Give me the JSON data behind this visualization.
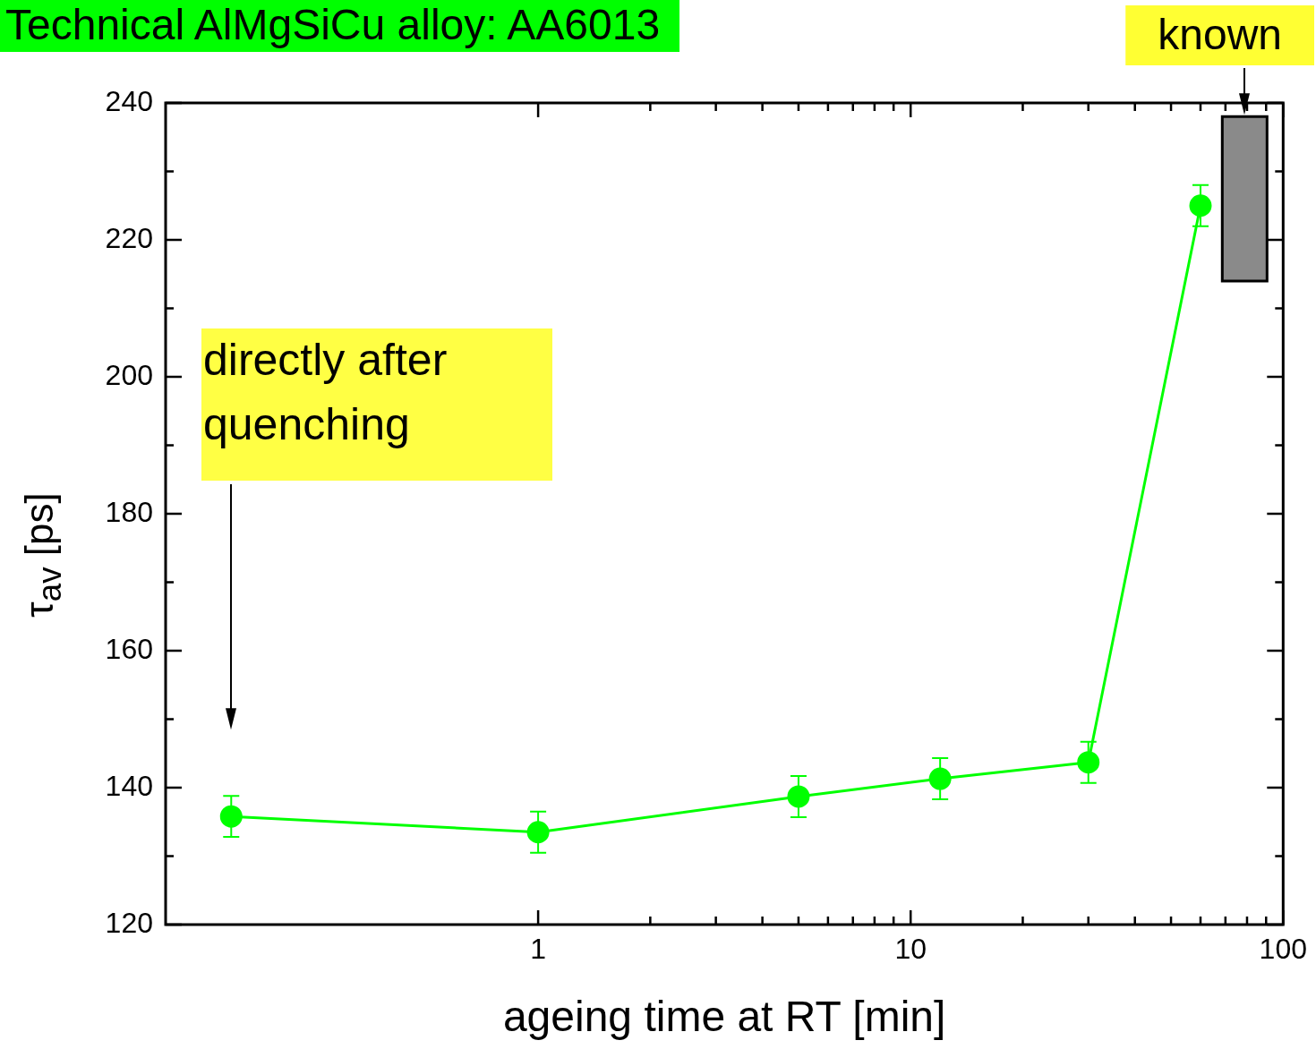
{
  "chart_data": {
    "type": "line",
    "title": "Technical AlMgSiCu alloy: AA6013",
    "xlabel": "ageing time at RT [min]",
    "ylabel": "τ$_{av}$ [ps]",
    "x": [
      0.15,
      1,
      5,
      12,
      30,
      60
    ],
    "series": [
      {
        "color": "#00ff00",
        "values": [
          135.8,
          133.5,
          138.7,
          141.3,
          143.7,
          225
        ],
        "errors": [
          3,
          3,
          3,
          3,
          3,
          3
        ]
      }
    ],
    "log": "x",
    "xlim": [
      0.1,
      100
    ],
    "xticks": [
      1,
      {
        "value": 2,
        "label": null
      },
      {
        "value": 3,
        "label": null
      },
      {
        "value": 4,
        "label": null
      },
      {
        "value": 5,
        "label": null
      },
      {
        "value": 6,
        "label": null
      },
      {
        "value": 7,
        "label": null
      },
      {
        "value": 8,
        "label": null
      },
      {
        "value": 9,
        "label": null
      },
      10,
      {
        "value": 20,
        "label": null
      },
      {
        "value": 30,
        "label": null
      },
      {
        "value": 40,
        "label": null
      },
      {
        "value": 50,
        "label": null
      },
      {
        "value": 60,
        "label": null
      },
      {
        "value": 70,
        "label": null
      },
      {
        "value": 80,
        "label": null
      },
      {
        "value": 90,
        "label": null
      },
      100
    ],
    "ylim": [
      120,
      240
    ],
    "yticks": [
      120,
      {
        "value": 130,
        "label": null
      },
      140,
      {
        "value": 150,
        "label": null
      },
      160,
      {
        "value": 170,
        "label": null
      },
      180,
      {
        "value": 190,
        "label": null
      },
      200,
      {
        "value": 210,
        "label": null
      },
      220,
      {
        "value": 230,
        "label": null
      },
      240
    ],
    "marker": "circle",
    "line_style": "solid",
    "grid": false,
    "legend": false,
    "annotations": [
      "directly after quenching"
    ],
    "bands": [
      {
        "axis": "y",
        "from": 214,
        "to": 238,
        "label": "known",
        "color": "#8a8a8a"
      }
    ]
  }
}
